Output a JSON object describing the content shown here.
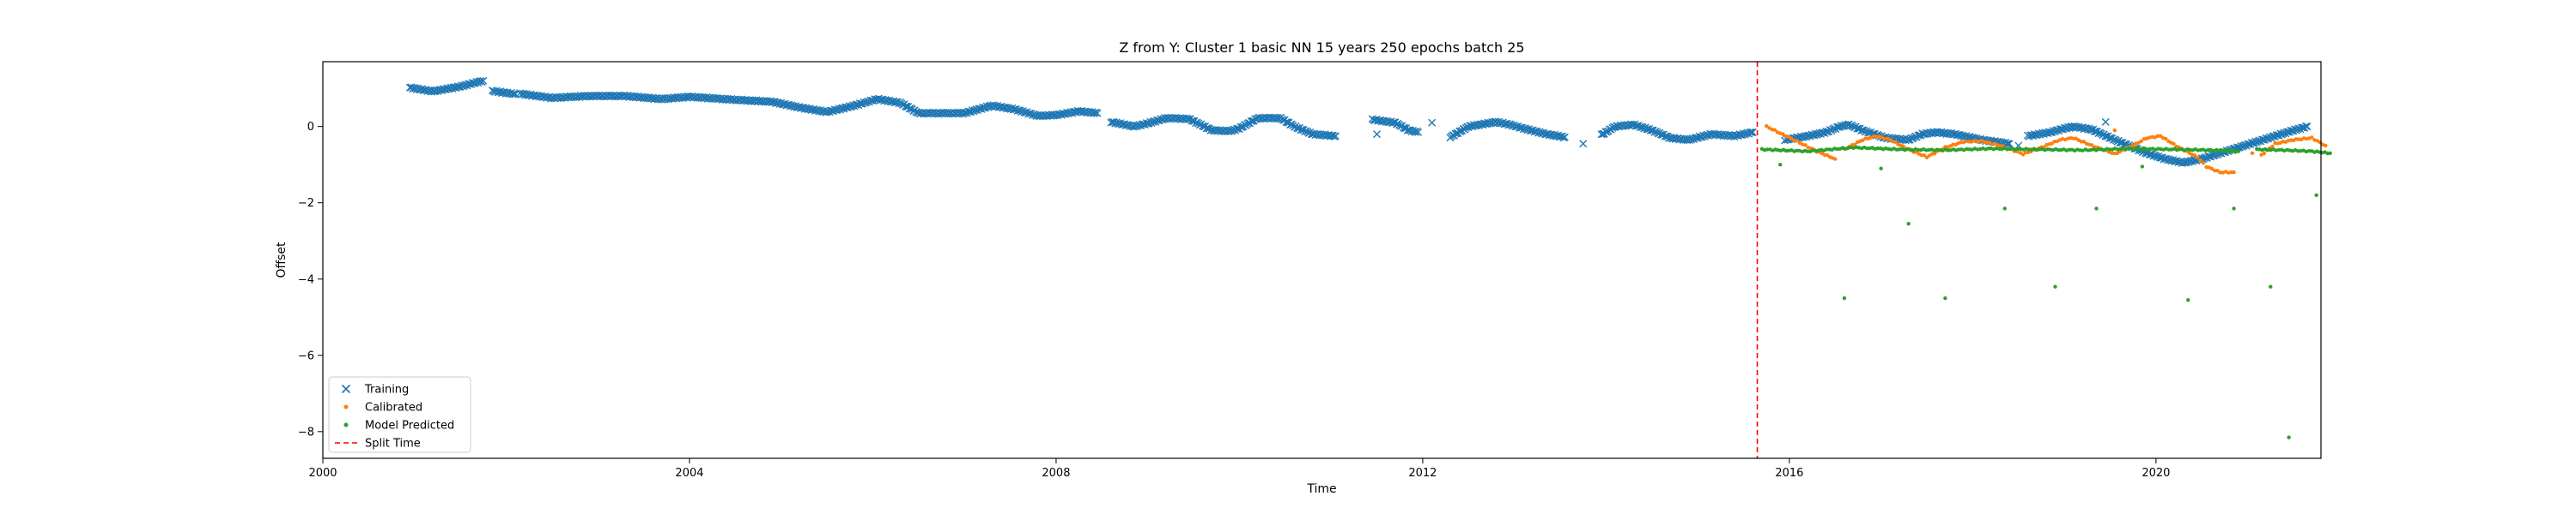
{
  "chart_data": {
    "type": "scatter",
    "title": "Z from Y: Cluster 1 basic NN 15 years 250 epochs batch 25",
    "xlabel": "Time",
    "ylabel": "Offset",
    "xlim": [
      2000.0,
      2021.8
    ],
    "ylim": [
      -8.7,
      1.7
    ],
    "xticks": [
      2000,
      2004,
      2008,
      2012,
      2016,
      2020
    ],
    "yticks": [
      0,
      -2,
      -4,
      -6,
      -8
    ],
    "grid": false,
    "legend_position": "bottom-left",
    "split_time": 2015.65,
    "series": [
      {
        "name": "Training",
        "marker": "x",
        "color": "#1f77b4",
        "segments": [
          [
            [
              2000.95,
              1.02
            ],
            [
              2001.2,
              0.92
            ],
            [
              2001.5,
              1.05
            ],
            [
              2001.75,
              1.2
            ]
          ],
          [
            [
              2001.85,
              0.93
            ],
            [
              2002.1,
              0.85
            ]
          ],
          [
            [
              2002.15,
              0.86
            ],
            [
              2002.5,
              0.75
            ],
            [
              2002.9,
              0.8
            ],
            [
              2003.3,
              0.8
            ],
            [
              2003.7,
              0.72
            ],
            [
              2004.0,
              0.78
            ],
            [
              2004.5,
              0.7
            ],
            [
              2004.9,
              0.65
            ],
            [
              2005.2,
              0.5
            ],
            [
              2005.5,
              0.38
            ],
            [
              2005.8,
              0.55
            ],
            [
              2006.05,
              0.72
            ],
            [
              2006.3,
              0.62
            ],
            [
              2006.5,
              0.35
            ],
            [
              2006.8,
              0.35
            ],
            [
              2007.0,
              0.35
            ],
            [
              2007.3,
              0.55
            ],
            [
              2007.55,
              0.45
            ],
            [
              2007.8,
              0.28
            ],
            [
              2008.0,
              0.3
            ],
            [
              2008.25,
              0.4
            ],
            [
              2008.45,
              0.35
            ]
          ],
          [
            [
              2008.6,
              0.12
            ],
            [
              2008.85,
              0.0
            ],
            [
              2009.0,
              0.08
            ],
            [
              2009.2,
              0.22
            ],
            [
              2009.45,
              0.2
            ],
            [
              2009.7,
              -0.1
            ],
            [
              2009.9,
              -0.12
            ],
            [
              2010.0,
              -0.05
            ],
            [
              2010.2,
              0.22
            ],
            [
              2010.45,
              0.22
            ],
            [
              2010.6,
              0.0
            ],
            [
              2010.8,
              -0.2
            ],
            [
              2011.05,
              -0.25
            ]
          ],
          [
            [
              2011.45,
              0.18
            ],
            [
              2011.7,
              0.1
            ],
            [
              2011.85,
              -0.1
            ],
            [
              2011.95,
              -0.15
            ]
          ],
          [
            [
              2012.3,
              -0.28
            ],
            [
              2012.5,
              0.0
            ],
            [
              2012.8,
              0.12
            ],
            [
              2012.95,
              0.05
            ],
            [
              2013.1,
              -0.05
            ],
            [
              2013.35,
              -0.2
            ],
            [
              2013.55,
              -0.28
            ]
          ],
          [
            [
              2013.95,
              -0.22
            ],
            [
              2014.1,
              0.0
            ],
            [
              2014.3,
              0.05
            ],
            [
              2014.5,
              -0.1
            ],
            [
              2014.7,
              -0.3
            ],
            [
              2014.9,
              -0.35
            ],
            [
              2015.15,
              -0.2
            ],
            [
              2015.4,
              -0.25
            ],
            [
              2015.6,
              -0.15
            ]
          ],
          [
            [
              2015.95,
              -0.35
            ],
            [
              2016.2,
              -0.25
            ],
            [
              2016.4,
              -0.15
            ],
            [
              2016.55,
              0.0
            ],
            [
              2016.65,
              0.05
            ],
            [
              2016.8,
              -0.1
            ],
            [
              2017.05,
              -0.3
            ],
            [
              2017.3,
              -0.35
            ],
            [
              2017.45,
              -0.2
            ],
            [
              2017.6,
              -0.15
            ],
            [
              2017.8,
              -0.2
            ],
            [
              2018.1,
              -0.35
            ],
            [
              2018.4,
              -0.45
            ]
          ],
          [
            [
              2018.6,
              -0.25
            ],
            [
              2018.85,
              -0.15
            ],
            [
              2019.0,
              -0.05
            ],
            [
              2019.1,
              0.0
            ],
            [
              2019.3,
              -0.08
            ],
            [
              2019.55,
              -0.35
            ],
            [
              2019.75,
              -0.55
            ],
            [
              2019.9,
              -0.7
            ],
            [
              2020.1,
              -0.85
            ],
            [
              2020.3,
              -0.95
            ],
            [
              2020.5,
              -0.85
            ],
            [
              2020.7,
              -0.7
            ],
            [
              2020.9,
              -0.55
            ],
            [
              2021.1,
              -0.4
            ],
            [
              2021.3,
              -0.25
            ],
            [
              2021.5,
              -0.1
            ],
            [
              2021.65,
              0.0
            ]
          ]
        ],
        "isolated_points": [
          [
            2011.5,
            -0.2
          ],
          [
            2012.1,
            0.1
          ],
          [
            2013.75,
            -0.45
          ],
          [
            2018.5,
            -0.5
          ],
          [
            2019.45,
            0.12
          ]
        ]
      },
      {
        "name": "Calibrated",
        "marker": "dot",
        "color": "#ff7f0e",
        "segments": [
          [
            [
              2015.75,
              0.0
            ],
            [
              2016.05,
              -0.35
            ],
            [
              2016.3,
              -0.65
            ],
            [
              2016.5,
              -0.85
            ]
          ],
          [
            [
              2016.6,
              -0.6
            ],
            [
              2016.8,
              -0.35
            ],
            [
              2016.95,
              -0.25
            ],
            [
              2017.1,
              -0.35
            ],
            [
              2017.3,
              -0.6
            ],
            [
              2017.5,
              -0.8
            ],
            [
              2017.7,
              -0.55
            ],
            [
              2017.9,
              -0.4
            ],
            [
              2018.1,
              -0.38
            ],
            [
              2018.3,
              -0.5
            ],
            [
              2018.55,
              -0.72
            ],
            [
              2018.75,
              -0.55
            ],
            [
              2018.95,
              -0.35
            ],
            [
              2019.1,
              -0.3
            ],
            [
              2019.3,
              -0.5
            ],
            [
              2019.55,
              -0.72
            ],
            [
              2019.75,
              -0.5
            ],
            [
              2019.9,
              -0.3
            ],
            [
              2020.05,
              -0.25
            ],
            [
              2020.25,
              -0.55
            ],
            [
              2020.45,
              -0.8
            ],
            [
              2020.55,
              -1.05
            ],
            [
              2020.7,
              -1.2
            ],
            [
              2020.85,
              -1.2
            ]
          ],
          [
            [
              2021.15,
              -0.75
            ],
            [
              2021.3,
              -0.45
            ],
            [
              2021.5,
              -0.35
            ],
            [
              2021.7,
              -0.3
            ],
            [
              2021.85,
              -0.5
            ]
          ]
        ],
        "isolated_points": [
          [
            2019.55,
            -0.1
          ],
          [
            2021.05,
            -0.7
          ]
        ]
      },
      {
        "name": "Model Predicted",
        "marker": "dot",
        "color": "#2ca02c",
        "segments": [
          [
            [
              2015.7,
              -0.6
            ],
            [
              2016.2,
              -0.65
            ],
            [
              2016.7,
              -0.55
            ],
            [
              2017.2,
              -0.6
            ],
            [
              2017.7,
              -0.62
            ],
            [
              2018.2,
              -0.58
            ],
            [
              2018.7,
              -0.6
            ],
            [
              2019.2,
              -0.62
            ],
            [
              2019.7,
              -0.58
            ],
            [
              2020.2,
              -0.6
            ],
            [
              2020.6,
              -0.62
            ],
            [
              2020.9,
              -0.65
            ]
          ],
          [
            [
              2021.1,
              -0.6
            ],
            [
              2021.4,
              -0.62
            ],
            [
              2021.7,
              -0.65
            ],
            [
              2021.9,
              -0.7
            ]
          ]
        ],
        "isolated_points": [
          [
            2015.9,
            -1.0
          ],
          [
            2016.6,
            -4.5
          ],
          [
            2017.0,
            -1.1
          ],
          [
            2017.3,
            -2.55
          ],
          [
            2017.7,
            -4.5
          ],
          [
            2018.35,
            -2.15
          ],
          [
            2018.9,
            -4.2
          ],
          [
            2019.35,
            -2.15
          ],
          [
            2019.85,
            -1.05
          ],
          [
            2020.35,
            -4.55
          ],
          [
            2020.85,
            -2.15
          ],
          [
            2021.25,
            -4.2
          ],
          [
            2021.45,
            -8.15
          ],
          [
            2021.75,
            -1.8
          ]
        ]
      },
      {
        "name": "Split Time",
        "marker": "dashed-line",
        "color": "#ff0000"
      }
    ]
  }
}
